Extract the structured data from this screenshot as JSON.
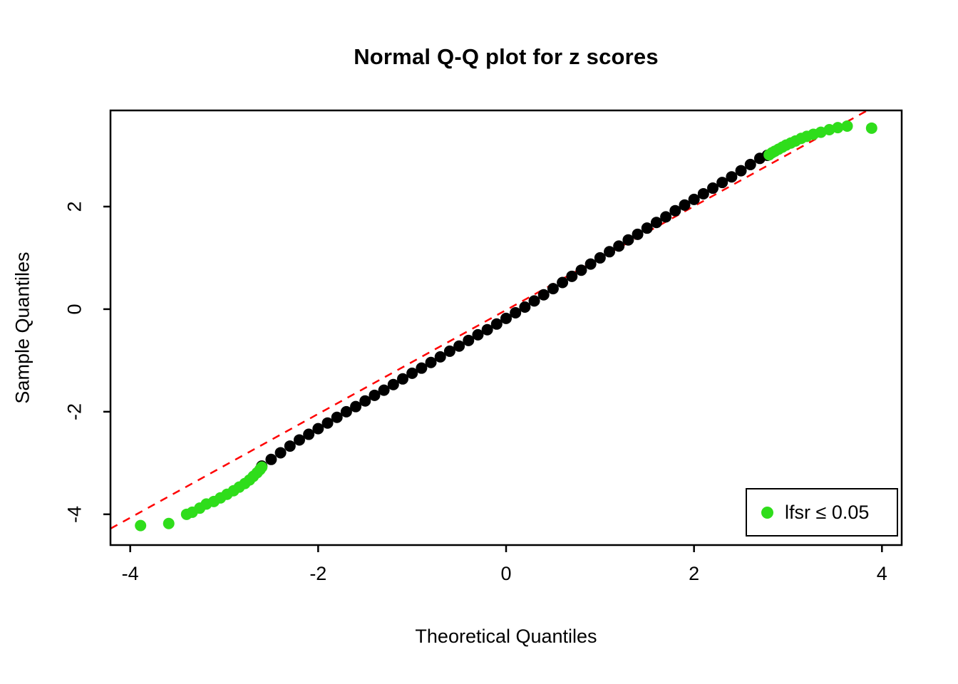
{
  "page": {
    "background": "#ffffff"
  },
  "chart_data": {
    "type": "scatter",
    "title": "Normal Q-Q plot for z scores",
    "xlabel": "Theoretical Quantiles",
    "ylabel": "Sample Quantiles",
    "xlim": [
      -4.21,
      4.21
    ],
    "ylim": [
      -4.6,
      3.875
    ],
    "x_ticks": [
      -4,
      -2,
      0,
      2,
      4
    ],
    "y_ticks": [
      -4,
      -2,
      0,
      2
    ],
    "grid": false,
    "frame_color": "#000000",
    "reference_line": {
      "style": "dashed",
      "color": "#FF0000",
      "from": [
        -4.21,
        -4.28
      ],
      "to": [
        3.84,
        3.87
      ]
    },
    "series": [
      {
        "id": "z-scores",
        "name": "z scores",
        "color": "#000000",
        "marker": "filled-circle",
        "marker_radius": 8,
        "points": [
          [
            -2.6,
            -3.06
          ],
          [
            -2.5,
            -2.93
          ],
          [
            -2.4,
            -2.8
          ],
          [
            -2.3,
            -2.67
          ],
          [
            -2.2,
            -2.55
          ],
          [
            -2.1,
            -2.44
          ],
          [
            -2.0,
            -2.33
          ],
          [
            -1.9,
            -2.22
          ],
          [
            -1.8,
            -2.11
          ],
          [
            -1.7,
            -2.0
          ],
          [
            -1.6,
            -1.9
          ],
          [
            -1.5,
            -1.79
          ],
          [
            -1.4,
            -1.68
          ],
          [
            -1.3,
            -1.58
          ],
          [
            -1.2,
            -1.47
          ],
          [
            -1.1,
            -1.36
          ],
          [
            -1.0,
            -1.25
          ],
          [
            -0.9,
            -1.15
          ],
          [
            -0.8,
            -1.04
          ],
          [
            -0.7,
            -0.93
          ],
          [
            -0.6,
            -0.82
          ],
          [
            -0.5,
            -0.72
          ],
          [
            -0.4,
            -0.61
          ],
          [
            -0.3,
            -0.5
          ],
          [
            -0.2,
            -0.4
          ],
          [
            -0.1,
            -0.29
          ],
          [
            0.0,
            -0.18
          ],
          [
            0.1,
            -0.07
          ],
          [
            0.2,
            0.04
          ],
          [
            0.3,
            0.16
          ],
          [
            0.4,
            0.28
          ],
          [
            0.5,
            0.4
          ],
          [
            0.6,
            0.52
          ],
          [
            0.7,
            0.64
          ],
          [
            0.8,
            0.76
          ],
          [
            0.9,
            0.88
          ],
          [
            1.0,
            1.0
          ],
          [
            1.1,
            1.12
          ],
          [
            1.2,
            1.23
          ],
          [
            1.3,
            1.35
          ],
          [
            1.4,
            1.46
          ],
          [
            1.5,
            1.58
          ],
          [
            1.6,
            1.69
          ],
          [
            1.7,
            1.8
          ],
          [
            1.8,
            1.92
          ],
          [
            1.9,
            2.03
          ],
          [
            2.0,
            2.14
          ],
          [
            2.1,
            2.25
          ],
          [
            2.2,
            2.36
          ],
          [
            2.3,
            2.47
          ],
          [
            2.4,
            2.58
          ],
          [
            2.5,
            2.7
          ],
          [
            2.6,
            2.82
          ],
          [
            2.7,
            2.94
          ],
          [
            2.78,
            3.0
          ]
        ]
      },
      {
        "id": "lfsr-significant",
        "name": "lfsr ≤ 0.05",
        "color": "#2FDD1B",
        "marker": "filled-circle",
        "marker_radius": 8,
        "points": [
          [
            -3.89,
            -4.22
          ],
          [
            -3.59,
            -4.18
          ],
          [
            -3.4,
            -4.0
          ],
          [
            -3.34,
            -3.96
          ],
          [
            -3.26,
            -3.88
          ],
          [
            -3.19,
            -3.8
          ],
          [
            -3.11,
            -3.75
          ],
          [
            -3.04,
            -3.68
          ],
          [
            -2.97,
            -3.61
          ],
          [
            -2.9,
            -3.54
          ],
          [
            -2.84,
            -3.47
          ],
          [
            -2.78,
            -3.4
          ],
          [
            -2.73,
            -3.33
          ],
          [
            -2.69,
            -3.26
          ],
          [
            -2.65,
            -3.19
          ],
          [
            -2.62,
            -3.13
          ],
          [
            -2.6,
            -3.08
          ],
          [
            2.8,
            3.01
          ],
          [
            2.83,
            3.05
          ],
          [
            2.86,
            3.08
          ],
          [
            2.9,
            3.12
          ],
          [
            2.94,
            3.16
          ],
          [
            2.98,
            3.2
          ],
          [
            3.03,
            3.24
          ],
          [
            3.08,
            3.28
          ],
          [
            3.14,
            3.33
          ],
          [
            3.2,
            3.37
          ],
          [
            3.27,
            3.41
          ],
          [
            3.35,
            3.45
          ],
          [
            3.44,
            3.5
          ],
          [
            3.53,
            3.54
          ],
          [
            3.63,
            3.57
          ],
          [
            3.89,
            3.53
          ]
        ]
      }
    ],
    "legend": {
      "position": "bottom-right",
      "entries": [
        {
          "label": "lfsr  ≤ 0.05",
          "color": "#2FDD1B"
        }
      ]
    }
  }
}
